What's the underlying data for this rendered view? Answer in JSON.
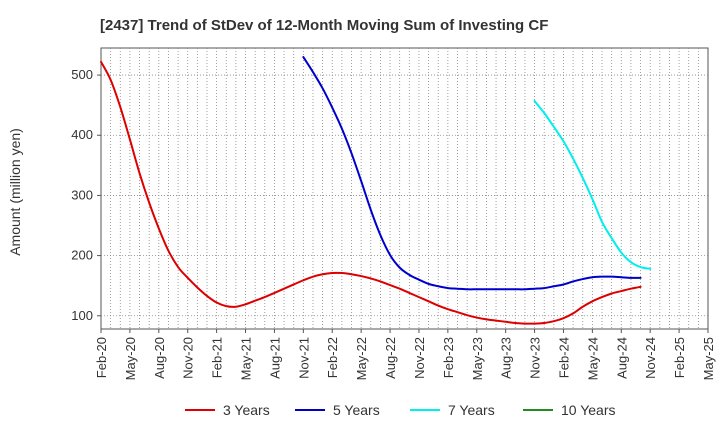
{
  "chart_data": {
    "type": "line",
    "title": "[2437]  Trend of StDev of 12-Month Moving Sum of Investing CF",
    "ylabel": "Amount (million yen)",
    "xlabel": "",
    "ylim": [
      78,
      545
    ],
    "yticks": [
      100,
      200,
      300,
      400,
      500
    ],
    "grid": true,
    "legend_position": "bottom",
    "x_ticks": [
      "Feb-20",
      "May-20",
      "Aug-20",
      "Nov-20",
      "Feb-21",
      "May-21",
      "Aug-21",
      "Nov-21",
      "Feb-22",
      "May-22",
      "Aug-22",
      "Nov-22",
      "Feb-23",
      "May-23",
      "Aug-23",
      "Nov-23",
      "Feb-24",
      "May-24",
      "Aug-24",
      "Nov-24",
      "Feb-25",
      "May-25"
    ],
    "series": [
      {
        "name": "3 Years",
        "color": "#dd0000",
        "points": [
          [
            0,
            522
          ],
          [
            1,
            492
          ],
          [
            2,
            447
          ],
          [
            3,
            393
          ],
          [
            4,
            337
          ],
          [
            5,
            288
          ],
          [
            6,
            245
          ],
          [
            7,
            208
          ],
          [
            8,
            181
          ],
          [
            9,
            163
          ],
          [
            10,
            147
          ],
          [
            11,
            133
          ],
          [
            12,
            122
          ],
          [
            13,
            116
          ],
          [
            14,
            115
          ],
          [
            15,
            119
          ],
          [
            16,
            125
          ],
          [
            17,
            131
          ],
          [
            18,
            138
          ],
          [
            19,
            145
          ],
          [
            20,
            152
          ],
          [
            21,
            159
          ],
          [
            22,
            165
          ],
          [
            23,
            169
          ],
          [
            24,
            171
          ],
          [
            25,
            171
          ],
          [
            26,
            169
          ],
          [
            27,
            166
          ],
          [
            28,
            162
          ],
          [
            29,
            157
          ],
          [
            30,
            151
          ],
          [
            31,
            145
          ],
          [
            32,
            138
          ],
          [
            33,
            131
          ],
          [
            34,
            124
          ],
          [
            35,
            117
          ],
          [
            36,
            111
          ],
          [
            37,
            106
          ],
          [
            38,
            101
          ],
          [
            39,
            97
          ],
          [
            40,
            94
          ],
          [
            41,
            92
          ],
          [
            42,
            90
          ],
          [
            43,
            88
          ],
          [
            44,
            87
          ],
          [
            45,
            87
          ],
          [
            46,
            88
          ],
          [
            47,
            91
          ],
          [
            48,
            96
          ],
          [
            49,
            104
          ],
          [
            50,
            115
          ],
          [
            51,
            124
          ],
          [
            52,
            131
          ],
          [
            53,
            137
          ],
          [
            54,
            141
          ],
          [
            55,
            145
          ],
          [
            56,
            148
          ]
        ]
      },
      {
        "name": "5 Years",
        "color": "#0000cc",
        "points": [
          [
            21,
            530
          ],
          [
            22,
            505
          ],
          [
            23,
            478
          ],
          [
            24,
            446
          ],
          [
            25,
            411
          ],
          [
            26,
            370
          ],
          [
            27,
            324
          ],
          [
            28,
            276
          ],
          [
            29,
            234
          ],
          [
            30,
            201
          ],
          [
            31,
            180
          ],
          [
            32,
            168
          ],
          [
            33,
            160
          ],
          [
            34,
            153
          ],
          [
            35,
            149
          ],
          [
            36,
            146
          ],
          [
            37,
            145
          ],
          [
            38,
            144
          ],
          [
            39,
            144
          ],
          [
            40,
            144
          ],
          [
            41,
            144
          ],
          [
            42,
            144
          ],
          [
            43,
            144
          ],
          [
            44,
            144
          ],
          [
            45,
            145
          ],
          [
            46,
            146
          ],
          [
            47,
            149
          ],
          [
            48,
            152
          ],
          [
            49,
            157
          ],
          [
            50,
            161
          ],
          [
            51,
            164
          ],
          [
            52,
            165
          ],
          [
            53,
            165
          ],
          [
            54,
            164
          ],
          [
            55,
            163
          ],
          [
            56,
            163
          ]
        ]
      },
      {
        "name": "7 Years",
        "color": "#00eeee",
        "points": [
          [
            45,
            457
          ],
          [
            46,
            437
          ],
          [
            47,
            414
          ],
          [
            48,
            390
          ],
          [
            49,
            361
          ],
          [
            50,
            329
          ],
          [
            51,
            294
          ],
          [
            52,
            256
          ],
          [
            53,
            229
          ],
          [
            54,
            205
          ],
          [
            55,
            189
          ],
          [
            56,
            181
          ],
          [
            57,
            178
          ]
        ]
      },
      {
        "name": "10 Years",
        "color": "#228b22",
        "points": []
      }
    ]
  }
}
